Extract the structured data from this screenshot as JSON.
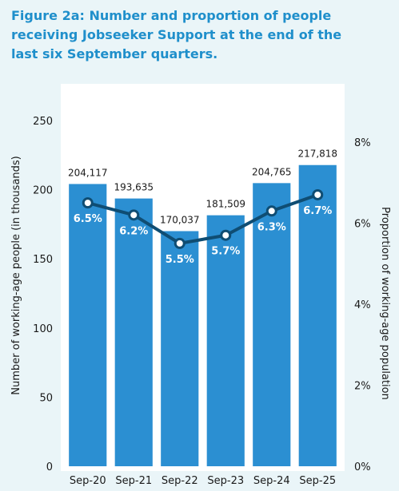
{
  "title_lines": [
    "Figure 2a: Number and proportion of people",
    "receiving Jobseeker Support at the end of the",
    "last six September quarters."
  ],
  "chart_data": {
    "type": "bar",
    "categories": [
      "Sep-20",
      "Sep-21",
      "Sep-22",
      "Sep-23",
      "Sep-24",
      "Sep-25"
    ],
    "series": [
      {
        "type": "bar",
        "values": [
          204117,
          193635,
          170037,
          181509,
          204765,
          217818
        ],
        "data_labels": [
          "204,117",
          "193,635",
          "170,037",
          "181,509",
          "204,765",
          "217,818"
        ],
        "color": "#2b8fd2",
        "axis": "left"
      },
      {
        "type": "line",
        "values": [
          6.5,
          6.2,
          5.5,
          5.7,
          6.3,
          6.7
        ],
        "data_labels": [
          "6.5%",
          "6.2%",
          "5.5%",
          "5.7%",
          "6.3%",
          "6.7%"
        ],
        "color": "#0f4d73",
        "axis": "right"
      }
    ],
    "ylabel": "Number of working-age people (in thousands)",
    "ylabel_right": "Proportion of working-age population",
    "ylim": [
      0,
      250
    ],
    "yticks": [
      "0",
      "50",
      "100",
      "150",
      "200",
      "250"
    ],
    "ylim_right": [
      0,
      8
    ],
    "yticks_right": [
      "0%",
      "2%",
      "4%",
      "6%",
      "8%"
    ],
    "grid": false,
    "background_color": "#eaf5f8",
    "plot_background_color": "#ffffff"
  }
}
